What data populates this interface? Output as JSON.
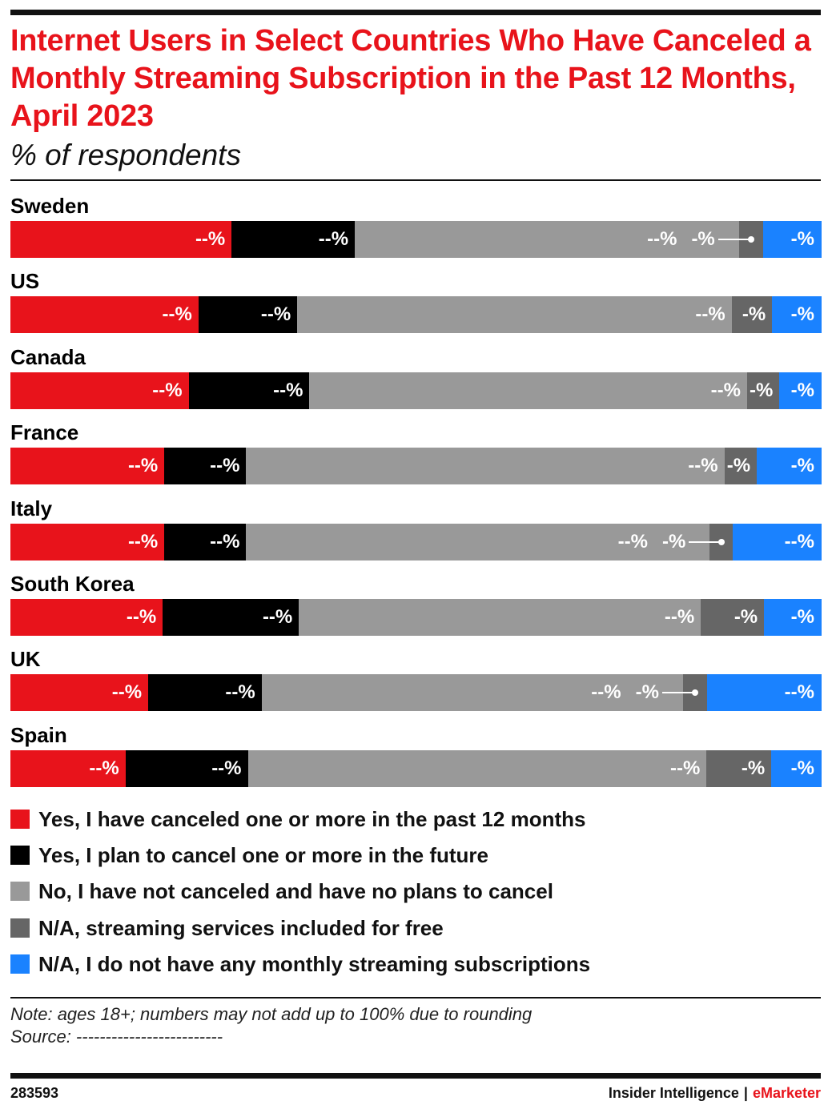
{
  "title": "Internet Users in Select Countries Who Have Canceled a Monthly Streaming Subscription in the Past 12 Months, April 2023",
  "subtitle": "% of respondents",
  "colors": {
    "title": "#e8131b",
    "canceled": "#e8131b",
    "plan": "#000000",
    "no": "#999999",
    "free": "#666666",
    "none": "#1a82ff"
  },
  "chart_data": {
    "type": "bar",
    "orientation": "horizontal",
    "stacked": true,
    "xlim": [
      0,
      100
    ],
    "categories": [
      "Sweden",
      "US",
      "Canada",
      "France",
      "Italy",
      "South Korea",
      "UK",
      "Spain"
    ],
    "series": [
      {
        "name": "Yes, I have canceled one or more in the past 12 months",
        "key": "canceled",
        "values": [
          27.3,
          23.2,
          22.0,
          19.0,
          19.0,
          18.8,
          17.0,
          14.2
        ],
        "labels": [
          "--%",
          "--%",
          "--%",
          "--%",
          "--%",
          "--%",
          "--%",
          "--%"
        ]
      },
      {
        "name": "Yes, I plan to cancel one or more in the future",
        "key": "plan",
        "values": [
          15.2,
          12.2,
          14.9,
          10.1,
          10.1,
          16.8,
          14.0,
          15.1
        ],
        "labels": [
          "--%",
          "--%",
          "--%",
          "--%",
          "--%",
          "--%",
          "--%",
          "--%"
        ]
      },
      {
        "name": "No, I have not canceled and have no plans to cancel",
        "key": "no",
        "values": [
          47.4,
          53.6,
          54.0,
          59.0,
          57.2,
          49.6,
          52.0,
          56.6
        ],
        "labels": [
          "--%",
          "--%",
          "--%",
          "--%",
          "--%",
          "--%",
          "--%",
          "--%"
        ]
      },
      {
        "name": "N/A, streaming services included for free",
        "key": "free",
        "values": [
          3.0,
          5.0,
          4.0,
          4.0,
          2.8,
          7.8,
          3.0,
          8.0
        ],
        "labels": [
          "-%",
          "-%",
          "-%",
          "-%",
          "-%",
          "-%",
          "-%",
          "-%"
        ]
      },
      {
        "name": "N/A, I do not have any monthly streaming subscriptions",
        "key": "none",
        "values": [
          7.1,
          6.0,
          5.1,
          7.9,
          10.9,
          7.0,
          14.0,
          6.1
        ],
        "labels": [
          "-%",
          "-%",
          "-%",
          "-%",
          "--%",
          "-%",
          "--%",
          "-%"
        ]
      }
    ],
    "legend_position": "bottom",
    "grid": false
  },
  "note": "Note: ages 18+; numbers may not add up to 100% due to rounding",
  "source": "Source: -------------------------",
  "footer": {
    "chart_id": "283593",
    "brand_main": "Insider Intelligence",
    "brand_sep": "|",
    "brand_accent": "eMarketer"
  }
}
